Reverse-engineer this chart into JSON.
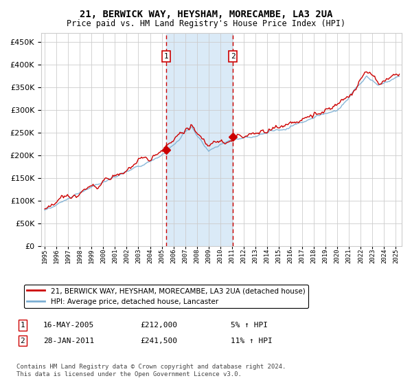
{
  "title": "21, BERWICK WAY, HEYSHAM, MORECAMBE, LA3 2UA",
  "subtitle": "Price paid vs. HM Land Registry's House Price Index (HPI)",
  "ylabel_vals": [
    0,
    50000,
    100000,
    150000,
    200000,
    250000,
    300000,
    350000,
    400000,
    450000
  ],
  "ylim": [
    0,
    470000
  ],
  "xlim_start": 1994.7,
  "xlim_end": 2025.5,
  "sale1_date": 2005.37,
  "sale1_price": 212000,
  "sale2_date": 2011.08,
  "sale2_price": 241500,
  "sale1_label": "1",
  "sale2_label": "2",
  "legend_line1": "21, BERWICK WAY, HEYSHAM, MORECAMBE, LA3 2UA (detached house)",
  "legend_line2": "HPI: Average price, detached house, Lancaster",
  "footnote": "Contains HM Land Registry data © Crown copyright and database right 2024.\nThis data is licensed under the Open Government Licence v3.0.",
  "line_red_color": "#cc0000",
  "line_blue_color": "#7bafd4",
  "shading_color": "#daeaf7",
  "grid_color": "#cccccc",
  "bg_color": "#ffffff",
  "sale_marker_color": "#cc0000"
}
